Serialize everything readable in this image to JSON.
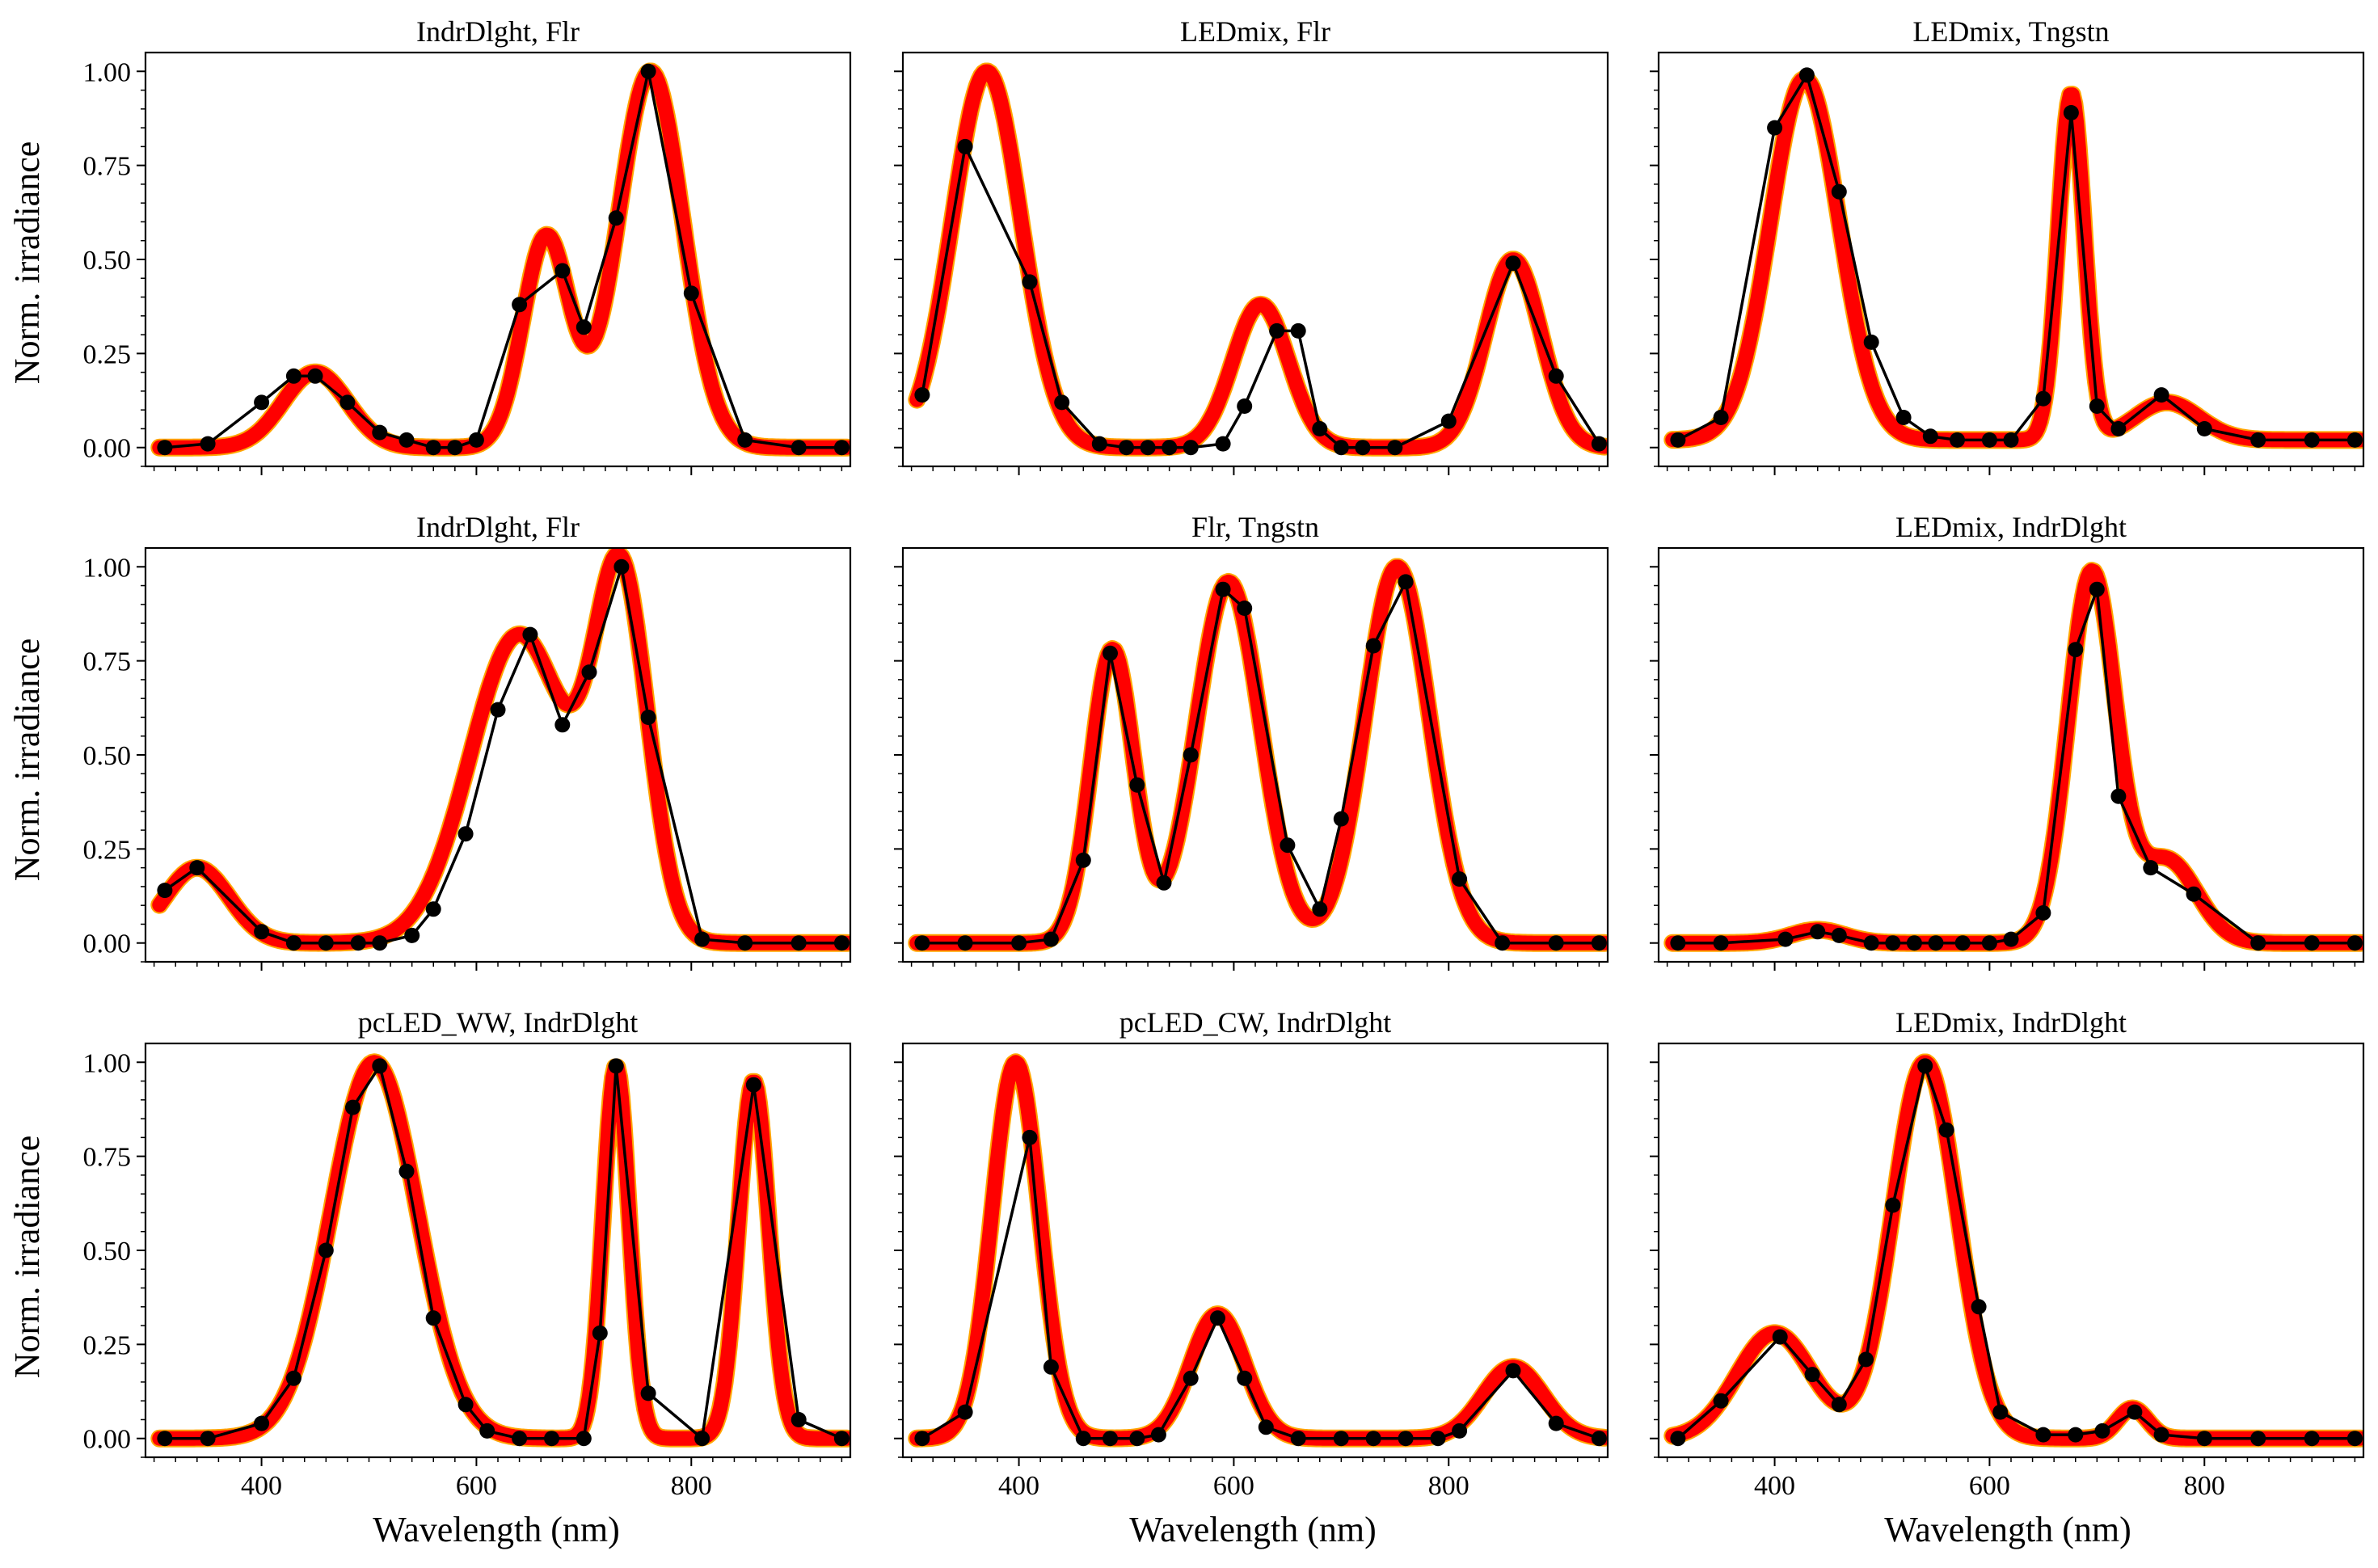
{
  "figure": {
    "ylabel": "Norm. irradiance",
    "xlabel": "Wavelength (nm)",
    "colors": {
      "band_outer": "#FFA500",
      "band_inner": "#FF0000",
      "measured": "#000000",
      "axes": "#000000"
    }
  },
  "chart_data": [
    {
      "type": "line",
      "title": "IndrDlght, Flr",
      "xlim": [
        292,
        948
      ],
      "ylim": [
        -0.05,
        1.05
      ],
      "xticks": [
        400,
        600,
        800
      ],
      "yticks": [
        0.0,
        0.25,
        0.5,
        0.75,
        1.0
      ],
      "ytick_labels": [
        "0.00",
        "0.25",
        "0.50",
        "0.75",
        "1.00"
      ],
      "show_yticklabels": true,
      "show_xticklabels": false,
      "spectrum_peaks": [
        [
          450,
          0.2,
          30
        ],
        [
          665,
          0.56,
          22
        ],
        [
          762,
          1.0,
          30
        ]
      ],
      "measured": {
        "x": [
          310,
          350,
          400,
          430,
          450,
          480,
          510,
          535,
          560,
          580,
          600,
          640,
          680,
          700,
          730,
          760,
          800,
          850,
          900,
          940
        ],
        "y": [
          0.0,
          0.01,
          0.12,
          0.19,
          0.19,
          0.12,
          0.04,
          0.02,
          0.0,
          0.0,
          0.02,
          0.38,
          0.47,
          0.32,
          0.61,
          1.0,
          0.41,
          0.02,
          0.0,
          0.0
        ]
      }
    },
    {
      "type": "line",
      "title": "LEDmix, Flr",
      "xlim": [
        292,
        948
      ],
      "ylim": [
        -0.05,
        1.05
      ],
      "xticks": [
        400,
        600,
        800
      ],
      "yticks": [
        0.0,
        0.25,
        0.5,
        0.75,
        1.0
      ],
      "ytick_labels": [
        "0.00",
        "0.25",
        "0.50",
        "0.75",
        "1.00"
      ],
      "show_yticklabels": false,
      "show_xticklabels": false,
      "spectrum_peaks": [
        [
          370,
          1.0,
          32
        ],
        [
          625,
          0.38,
          26
        ],
        [
          860,
          0.5,
          26
        ]
      ],
      "measured": {
        "x": [
          310,
          350,
          410,
          440,
          475,
          500,
          520,
          540,
          560,
          590,
          610,
          640,
          660,
          680,
          700,
          720,
          750,
          800,
          860,
          900,
          940
        ],
        "y": [
          0.14,
          0.8,
          0.44,
          0.12,
          0.01,
          0.0,
          0.0,
          0.0,
          0.0,
          0.01,
          0.11,
          0.31,
          0.31,
          0.05,
          0.0,
          0.0,
          0.0,
          0.07,
          0.49,
          0.19,
          0.01
        ]
      }
    },
    {
      "type": "line",
      "title": "LEDmix, Tngstn",
      "xlim": [
        292,
        948
      ],
      "ylim": [
        -0.05,
        1.05
      ],
      "xticks": [
        400,
        600,
        800
      ],
      "yticks": [
        0.0,
        0.25,
        0.5,
        0.75,
        1.0
      ],
      "ytick_labels": [
        "0.00",
        "0.25",
        "0.50",
        "0.75",
        "1.00"
      ],
      "show_yticklabels": false,
      "show_xticklabels": false,
      "spectrum_peaks": [
        [
          428,
          0.98,
          32
        ],
        [
          676,
          0.94,
          12
        ],
        [
          765,
          0.12,
          30
        ]
      ],
      "baseline": 0.02,
      "measured": {
        "x": [
          310,
          350,
          400,
          430,
          460,
          490,
          520,
          545,
          570,
          600,
          620,
          650,
          676,
          700,
          720,
          760,
          800,
          850,
          900,
          940
        ],
        "y": [
          0.02,
          0.08,
          0.85,
          0.99,
          0.68,
          0.28,
          0.08,
          0.03,
          0.02,
          0.02,
          0.02,
          0.13,
          0.89,
          0.11,
          0.05,
          0.14,
          0.05,
          0.02,
          0.02,
          0.02
        ]
      }
    },
    {
      "type": "line",
      "title": "IndrDlght, Flr",
      "xlim": [
        292,
        948
      ],
      "ylim": [
        -0.05,
        1.05
      ],
      "xticks": [
        400,
        600,
        800
      ],
      "yticks": [
        0.0,
        0.25,
        0.5,
        0.75,
        1.0
      ],
      "ytick_labels": [
        "0.00",
        "0.25",
        "0.50",
        "0.75",
        "1.00"
      ],
      "show_yticklabels": true,
      "show_xticklabels": false,
      "spectrum_peaks": [
        [
          340,
          0.2,
          30
        ],
        [
          640,
          0.82,
          46
        ],
        [
          735,
          0.93,
          25
        ]
      ],
      "measured": {
        "x": [
          310,
          340,
          400,
          430,
          460,
          490,
          510,
          540,
          560,
          590,
          620,
          650,
          680,
          705,
          735,
          760,
          810,
          850,
          900,
          940
        ],
        "y": [
          0.14,
          0.2,
          0.03,
          0.0,
          0.0,
          0.0,
          0.0,
          0.02,
          0.09,
          0.29,
          0.62,
          0.82,
          0.58,
          0.72,
          1.0,
          0.6,
          0.01,
          0.0,
          0.0,
          0.0
        ]
      }
    },
    {
      "type": "line",
      "title": "Flr, Tngstn",
      "xlim": [
        292,
        948
      ],
      "ylim": [
        -0.05,
        1.05
      ],
      "xticks": [
        400,
        600,
        800
      ],
      "yticks": [
        0.0,
        0.25,
        0.5,
        0.75,
        1.0
      ],
      "ytick_labels": [
        "0.00",
        "0.25",
        "0.50",
        "0.75",
        "1.00"
      ],
      "show_yticklabels": false,
      "show_xticklabels": false,
      "spectrum_peaks": [
        [
          487,
          0.78,
          20
        ],
        [
          595,
          0.96,
          30
        ],
        [
          752,
          1.0,
          30
        ]
      ],
      "measured": {
        "x": [
          310,
          350,
          400,
          430,
          460,
          485,
          510,
          535,
          560,
          590,
          610,
          650,
          680,
          700,
          730,
          760,
          810,
          850,
          900,
          940
        ],
        "y": [
          0.0,
          0.0,
          0.0,
          0.01,
          0.22,
          0.77,
          0.42,
          0.16,
          0.5,
          0.94,
          0.89,
          0.26,
          0.09,
          0.33,
          0.79,
          0.96,
          0.17,
          0.0,
          0.0,
          0.0
        ]
      }
    },
    {
      "type": "line",
      "title": "LEDmix, IndrDlght",
      "xlim": [
        292,
        948
      ],
      "ylim": [
        -0.05,
        1.05
      ],
      "xticks": [
        400,
        600,
        800
      ],
      "yticks": [
        0.0,
        0.25,
        0.5,
        0.75,
        1.0
      ],
      "ytick_labels": [
        "0.00",
        "0.25",
        "0.50",
        "0.75",
        "1.00"
      ],
      "show_yticklabels": false,
      "show_xticklabels": false,
      "spectrum_peaks": [
        [
          440,
          0.035,
          25
        ],
        [
          695,
          0.98,
          22
        ],
        [
          765,
          0.22,
          28
        ]
      ],
      "measured": {
        "x": [
          310,
          350,
          410,
          440,
          460,
          490,
          510,
          530,
          550,
          575,
          600,
          620,
          650,
          680,
          700,
          720,
          750,
          790,
          850,
          900,
          940
        ],
        "y": [
          0.0,
          0.0,
          0.01,
          0.03,
          0.02,
          0.0,
          0.0,
          0.0,
          0.0,
          0.0,
          0.0,
          0.01,
          0.08,
          0.78,
          0.94,
          0.39,
          0.2,
          0.13,
          0.0,
          0.0,
          0.0
        ]
      }
    },
    {
      "type": "line",
      "title": "pcLED_WW, IndrDlght",
      "xlim": [
        292,
        948
      ],
      "ylim": [
        -0.05,
        1.05
      ],
      "xticks": [
        400,
        600,
        800
      ],
      "yticks": [
        0.0,
        0.25,
        0.5,
        0.75,
        1.0
      ],
      "ytick_labels": [
        "0.00",
        "0.25",
        "0.50",
        "0.75",
        "1.00"
      ],
      "show_yticklabels": true,
      "show_xticklabels": true,
      "spectrum_peaks": [
        [
          505,
          1.0,
          40
        ],
        [
          730,
          0.99,
          12
        ],
        [
          858,
          0.95,
          14
        ]
      ],
      "measured": {
        "x": [
          310,
          350,
          400,
          430,
          460,
          485,
          510,
          535,
          560,
          590,
          610,
          640,
          670,
          700,
          715,
          730,
          760,
          810,
          858,
          900,
          940
        ],
        "y": [
          0.0,
          0.0,
          0.04,
          0.16,
          0.5,
          0.88,
          0.99,
          0.71,
          0.32,
          0.09,
          0.02,
          0.0,
          0.0,
          0.0,
          0.28,
          0.99,
          0.12,
          0.0,
          0.94,
          0.05,
          0.0
        ]
      }
    },
    {
      "type": "line",
      "title": "pcLED_CW, IndrDlght",
      "xlim": [
        292,
        948
      ],
      "ylim": [
        -0.05,
        1.05
      ],
      "xticks": [
        400,
        600,
        800
      ],
      "yticks": [
        0.0,
        0.25,
        0.5,
        0.75,
        1.0
      ],
      "ytick_labels": [
        "0.00",
        "0.25",
        "0.50",
        "0.75",
        "1.00"
      ],
      "show_yticklabels": false,
      "show_xticklabels": true,
      "spectrum_peaks": [
        [
          397,
          1.0,
          22
        ],
        [
          585,
          0.33,
          25
        ],
        [
          860,
          0.19,
          28
        ]
      ],
      "measured": {
        "x": [
          310,
          350,
          410,
          430,
          460,
          485,
          510,
          530,
          560,
          585,
          610,
          630,
          660,
          700,
          730,
          760,
          790,
          810,
          860,
          900,
          940
        ],
        "y": [
          0.0,
          0.07,
          0.8,
          0.19,
          0.0,
          0.0,
          0.0,
          0.01,
          0.16,
          0.32,
          0.16,
          0.03,
          0.0,
          0.0,
          0.0,
          0.0,
          0.0,
          0.02,
          0.18,
          0.04,
          0.0
        ]
      }
    },
    {
      "type": "line",
      "title": "LEDmix, IndrDlght",
      "xlim": [
        292,
        948
      ],
      "ylim": [
        -0.05,
        1.05
      ],
      "xticks": [
        400,
        600,
        800
      ],
      "yticks": [
        0.0,
        0.25,
        0.5,
        0.75,
        1.0
      ],
      "ytick_labels": [
        "0.00",
        "0.25",
        "0.50",
        "0.75",
        "1.00"
      ],
      "show_yticklabels": false,
      "show_xticklabels": true,
      "spectrum_peaks": [
        [
          400,
          0.28,
          35
        ],
        [
          540,
          1.0,
          30
        ],
        [
          733,
          0.08,
          14
        ]
      ],
      "measured": {
        "x": [
          310,
          350,
          405,
          435,
          460,
          485,
          510,
          540,
          560,
          590,
          610,
          650,
          680,
          705,
          735,
          760,
          800,
          850,
          900,
          940
        ],
        "y": [
          0.0,
          0.1,
          0.27,
          0.17,
          0.09,
          0.21,
          0.62,
          0.99,
          0.82,
          0.35,
          0.07,
          0.01,
          0.01,
          0.02,
          0.07,
          0.01,
          0.0,
          0.0,
          0.0,
          0.0
        ]
      }
    }
  ]
}
